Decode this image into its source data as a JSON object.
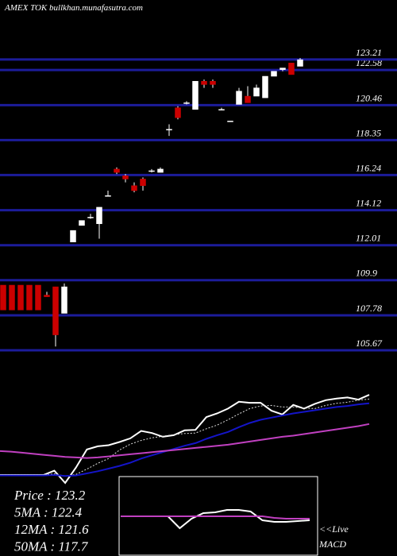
{
  "chart_data": [
    {
      "type": "candlestick",
      "title": "AMEX  TOK bullkhan.munafasutra.com",
      "open": [
        109.6,
        109.6,
        109.6,
        109.6,
        109.6,
        109.0,
        109.5,
        107.9,
        112.2,
        113.2,
        113.7,
        113.3,
        115.0,
        116.6,
        116.2,
        115.6,
        116.0,
        116.5,
        116.4,
        119.0,
        120.3,
        120.6,
        120.2,
        121.9,
        121.9,
        120.2,
        119.5,
        120.5,
        121.0,
        121.0,
        120.9,
        122.2,
        122.6,
        123.0,
        122.8
      ],
      "high": [
        109.6,
        109.6,
        109.6,
        109.6,
        109.6,
        109.2,
        109.5,
        109.7,
        112.9,
        113.5,
        113.9,
        114.3,
        115.3,
        116.7,
        116.3,
        115.8,
        116.1,
        116.6,
        116.7,
        119.3,
        120.4,
        120.7,
        121.9,
        122.0,
        122.0,
        120.3,
        119.5,
        121.5,
        121.6,
        121.7,
        122.2,
        122.5,
        122.7,
        123.0,
        123.3
      ],
      "low": [
        108.1,
        108.1,
        108.1,
        108.1,
        108.1,
        108.9,
        105.9,
        107.9,
        112.2,
        113.2,
        113.6,
        112.4,
        115.0,
        116.3,
        115.8,
        115.2,
        115.3,
        116.4,
        116.4,
        118.6,
        119.6,
        120.5,
        120.2,
        121.5,
        121.5,
        120.2,
        119.5,
        120.5,
        120.6,
        121.0,
        120.9,
        122.2,
        122.5,
        122.3,
        122.8
      ],
      "close": [
        108.1,
        108.1,
        108.1,
        108.1,
        108.1,
        108.9,
        106.6,
        109.5,
        112.9,
        113.5,
        113.7,
        114.3,
        115.0,
        116.4,
        116.0,
        115.3,
        115.6,
        116.5,
        116.6,
        119.0,
        119.7,
        120.6,
        121.9,
        121.7,
        121.7,
        120.2,
        119.5,
        121.3,
        120.6,
        121.5,
        122.2,
        122.5,
        122.7,
        122.3,
        123.2
      ],
      "up_color": "#ffffff",
      "down_color": "#cc0000",
      "ylim": [
        105.0,
        126.8
      ],
      "yticks": [
        105.67,
        107.78,
        109.9,
        112.01,
        114.12,
        116.24,
        118.35,
        120.46,
        122.58,
        123.21
      ],
      "grid": true,
      "grid_color": "#1c1c9a"
    },
    {
      "type": "line",
      "series": [
        {
          "color": "#ffffff",
          "style": "solid",
          "values": [
            108.1,
            108.1,
            108.1,
            108.1,
            108.1,
            108.9,
            106.6,
            109.5,
            112.9,
            113.5,
            113.7,
            114.3,
            115.0,
            116.4,
            116.0,
            115.3,
            115.6,
            116.5,
            116.6,
            119.0,
            119.7,
            120.6,
            121.9,
            121.7,
            121.7,
            120.2,
            119.5,
            121.3,
            120.6,
            121.5,
            122.2,
            122.5,
            122.7,
            122.3,
            123.2
          ]
        },
        {
          "color": "#dddddd",
          "style": "dotted",
          "values": [
            108.1,
            108.1,
            108.1,
            108.1,
            108.1,
            108.3,
            107.9,
            108.2,
            109.2,
            110.3,
            111.2,
            112.8,
            113.9,
            114.6,
            115.1,
            115.4,
            115.7,
            115.9,
            116.0,
            116.8,
            117.5,
            118.5,
            119.6,
            120.6,
            121.1,
            121.2,
            120.9,
            120.9,
            120.7,
            120.6,
            121.2,
            121.6,
            121.8,
            122.2,
            122.4
          ]
        },
        {
          "color": "#1414c8",
          "style": "solid",
          "values": [
            108.0,
            108.0,
            108.0,
            108.0,
            108.0,
            108.1,
            107.9,
            108.0,
            108.4,
            108.8,
            109.3,
            109.8,
            110.4,
            111.2,
            111.8,
            112.4,
            113.0,
            113.6,
            114.1,
            114.9,
            115.6,
            116.2,
            117.1,
            117.9,
            118.5,
            118.9,
            119.3,
            119.7,
            120.0,
            120.3,
            120.6,
            120.9,
            121.1,
            121.4,
            121.6
          ]
        },
        {
          "color": "#c040c0",
          "style": "solid",
          "values": [
            112.6,
            112.5,
            112.3,
            112.1,
            111.9,
            111.7,
            111.5,
            111.4,
            111.3,
            111.4,
            111.6,
            111.8,
            112.0,
            112.2,
            112.4,
            112.6,
            112.8,
            113.0,
            113.2,
            113.4,
            113.6,
            113.8,
            114.1,
            114.4,
            114.7,
            115.0,
            115.3,
            115.5,
            115.8,
            116.1,
            116.4,
            116.7,
            117.0,
            117.3,
            117.7
          ]
        }
      ],
      "ylim": [
        106.0,
        128.0
      ],
      "annotations": [
        "Price   : 123.2",
        "5MA  : 122.4",
        "12MA : 121.6",
        "50MA : 117.7"
      ]
    },
    {
      "type": "line",
      "series": [
        {
          "color": "#ffffff",
          "style": "solid",
          "values": [
            0,
            0,
            0,
            0,
            0,
            -1.5,
            -0.3,
            0.4,
            0.5,
            0.8,
            0.8,
            0.6,
            -0.5,
            -0.7,
            -0.7,
            -0.6,
            -0.5
          ]
        },
        {
          "color": "#c040c0",
          "style": "solid",
          "values": [
            0,
            0,
            0,
            0,
            0,
            0,
            0,
            0,
            0,
            0,
            0,
            0,
            0,
            -0.2,
            -0.3,
            -0.3,
            -0.3
          ]
        }
      ],
      "ylim": [
        -5,
        5
      ],
      "annotations": [
        "<<Live",
        "MACD"
      ]
    }
  ]
}
